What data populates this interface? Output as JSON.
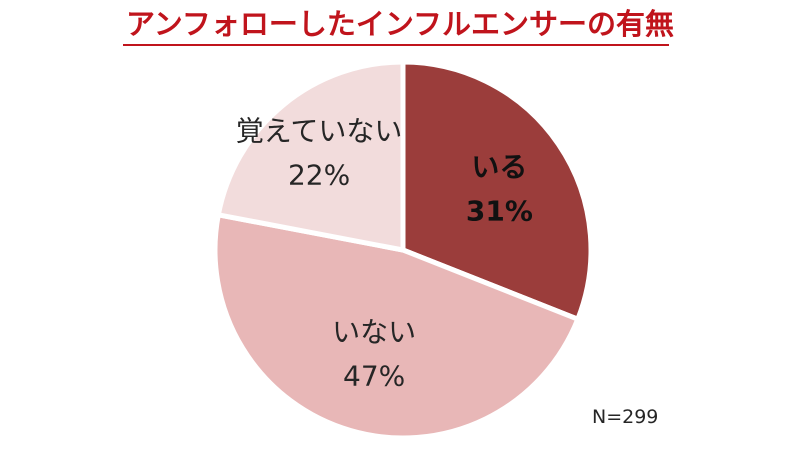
{
  "chart_data": {
    "type": "pie",
    "title": "アンフォローしたインフルエンサーの有無",
    "slices": [
      {
        "label": "いる",
        "value": 31,
        "value_label": "31%",
        "color": "#9b3d3b",
        "bold": true
      },
      {
        "label": "いない",
        "value": 47,
        "value_label": "47%",
        "color": "#e8b7b7",
        "bold": false
      },
      {
        "label": "覚えていない",
        "value": 22,
        "value_label": "22%",
        "color": "#f2dcdc",
        "bold": false
      }
    ],
    "start": "12 o'clock",
    "direction": "clockwise",
    "legend": "none",
    "note": "N=299"
  }
}
